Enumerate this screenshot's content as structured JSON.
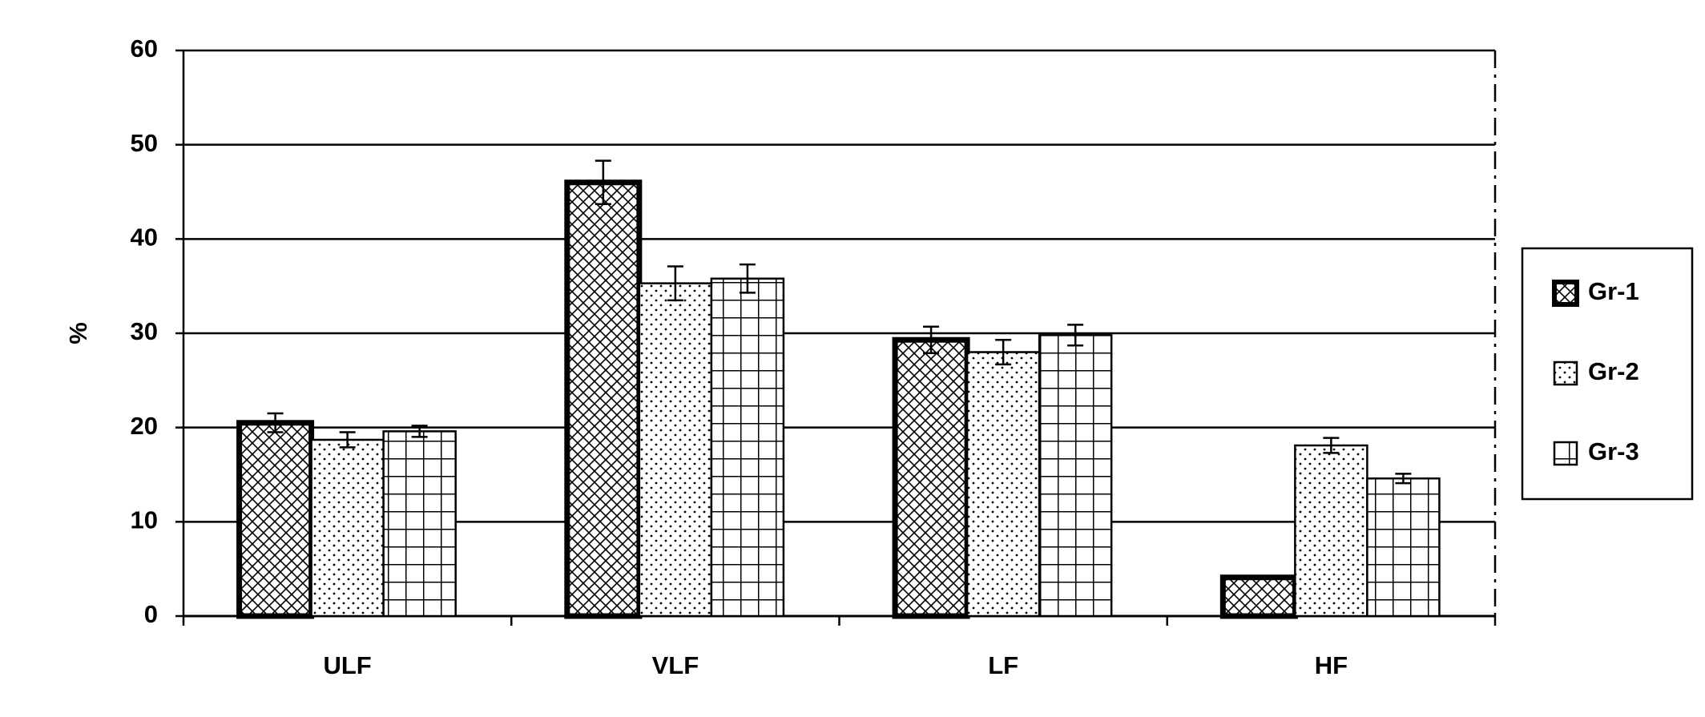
{
  "chart_data": {
    "type": "bar",
    "y_label": "%",
    "categories": [
      "ULF",
      "VLF",
      "LF",
      "HF"
    ],
    "series": [
      {
        "name": "Gr-1",
        "color": "#000000",
        "values": [
          20.5,
          46,
          29.3,
          4.1
        ],
        "errors": [
          1,
          2.3,
          1.4,
          null
        ]
      },
      {
        "name": "Gr-2",
        "color": "#000000",
        "values": [
          18.7,
          35.3,
          28,
          18.1
        ],
        "errors": [
          0.8,
          1.8,
          1.3,
          0.8
        ]
      },
      {
        "name": "Gr-3",
        "color": "#000000",
        "values": [
          19.6,
          35.8,
          29.8,
          14.6
        ],
        "errors": [
          0.6,
          1.5,
          1.1,
          0.5
        ]
      }
    ],
    "ylim": [
      0,
      60
    ],
    "yticks": [
      0,
      10,
      20,
      30,
      40,
      50,
      60
    ],
    "grid": true,
    "legend": "right"
  }
}
